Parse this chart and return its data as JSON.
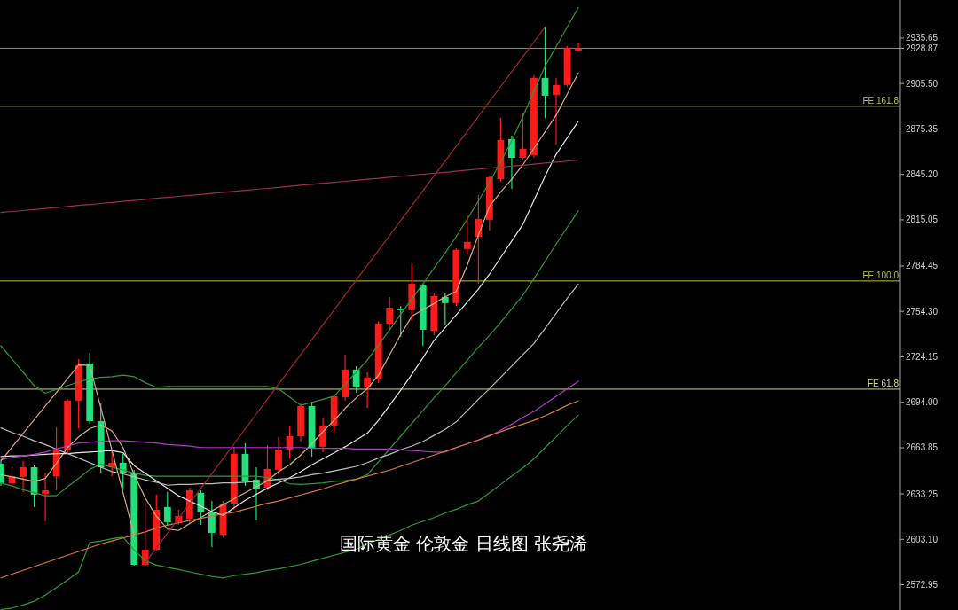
{
  "chart_data": {
    "type": "candlestick",
    "annotations": [
      "国际黄金 伦敦金 日线图 张尧浠"
    ],
    "categories": [
      null,
      null,
      null,
      null,
      null,
      null,
      null,
      null,
      null,
      null,
      null,
      null,
      null,
      null,
      null,
      null,
      null,
      null,
      null,
      null,
      null,
      null,
      null,
      null,
      null,
      null,
      null,
      null,
      null,
      null,
      null,
      null,
      null,
      null,
      null,
      null,
      null,
      null,
      null,
      null,
      null,
      null,
      null,
      null,
      null,
      null,
      null,
      null,
      null,
      null,
      null,
      null,
      null
    ],
    "ohlc": [
      [
        2653.3,
        2655.1,
        2638.6,
        2640.3
      ],
      [
        2640.3,
        2650.9,
        2636.2,
        2645.0
      ],
      [
        2644.5,
        2655.1,
        2634.4,
        2650.9
      ],
      [
        2650.9,
        2652.1,
        2624.5,
        2632.7
      ],
      [
        2633.3,
        2647.4,
        2615.1,
        2635.6
      ],
      [
        2645.0,
        2677.4,
        2635.6,
        2662.1
      ],
      [
        2662.1,
        2696.2,
        2659.8,
        2695.1
      ],
      [
        2695.1,
        2722.7,
        2676.8,
        2718.6
      ],
      [
        2719.8,
        2726.8,
        2679.8,
        2681.5
      ],
      [
        2681.5,
        2693.3,
        2647.4,
        2650.9
      ],
      [
        2650.9,
        2662.7,
        2645.0,
        2653.9
      ],
      [
        2653.9,
        2659.8,
        2635.6,
        2647.4
      ],
      [
        2647.4,
        2649.2,
        2585.6,
        2586.2
      ],
      [
        2586.2,
        2627.4,
        2585.6,
        2596.2
      ],
      [
        2596.2,
        2632.7,
        2595.1,
        2622.7
      ],
      [
        2624.5,
        2634.4,
        2612.1,
        2614.5
      ],
      [
        2614.5,
        2622.7,
        2612.7,
        2618.6
      ],
      [
        2616.8,
        2637.4,
        2613.9,
        2635.6
      ],
      [
        2633.9,
        2635.6,
        2612.7,
        2620.9
      ],
      [
        2621.5,
        2628.6,
        2598.0,
        2607.4
      ],
      [
        2606.2,
        2628.6,
        2604.5,
        2626.2
      ],
      [
        2626.8,
        2663.9,
        2622.7,
        2659.8
      ],
      [
        2659.8,
        2666.8,
        2638.6,
        2641.5
      ],
      [
        2642.7,
        2650.9,
        2615.7,
        2636.8
      ],
      [
        2637.4,
        2665.6,
        2635.6,
        2649.8
      ],
      [
        2649.2,
        2671.0,
        2646.2,
        2662.7
      ],
      [
        2662.7,
        2678.6,
        2656.8,
        2671.5
      ],
      [
        2671.5,
        2693.3,
        2668.0,
        2691.5
      ],
      [
        2691.5,
        2694.4,
        2658.0,
        2663.9
      ],
      [
        2664.5,
        2683.3,
        2660.9,
        2678.6
      ],
      [
        2678.6,
        2699.2,
        2674.5,
        2698.0
      ],
      [
        2697.4,
        2725.6,
        2695.1,
        2715.7
      ],
      [
        2715.7,
        2718.0,
        2700.4,
        2703.9
      ],
      [
        2703.9,
        2713.9,
        2690.3,
        2710.4
      ],
      [
        2709.2,
        2748.0,
        2706.8,
        2746.2
      ],
      [
        2746.2,
        2763.9,
        2742.1,
        2756.8
      ],
      [
        2756.2,
        2758.0,
        2737.4,
        2755.1
      ],
      [
        2755.1,
        2786.2,
        2748.0,
        2772.7
      ],
      [
        2771.5,
        2772.7,
        2731.5,
        2742.1
      ],
      [
        2741.5,
        2766.8,
        2738.6,
        2764.5
      ],
      [
        2763.9,
        2766.8,
        2745.1,
        2759.8
      ],
      [
        2759.8,
        2796.2,
        2758.0,
        2795.1
      ],
      [
        2795.7,
        2818.0,
        2792.1,
        2800.4
      ],
      [
        2803.9,
        2831.5,
        2772.7,
        2815.6
      ],
      [
        2815.1,
        2844.5,
        2808.0,
        2843.3
      ],
      [
        2842.1,
        2882.7,
        2840.4,
        2868.0
      ],
      [
        2868.6,
        2870.9,
        2835.6,
        2856.2
      ],
      [
        2856.2,
        2885.6,
        2855.1,
        2862.1
      ],
      [
        2858.0,
        2911.0,
        2856.2,
        2909.2
      ],
      [
        2909.2,
        2943.3,
        2882.7,
        2897.4
      ],
      [
        2898.0,
        2909.2,
        2865.1,
        2904.5
      ],
      [
        2904.5,
        2930.4,
        2903.2,
        2929.2
      ],
      [
        2927.4,
        2932.7,
        2926.8,
        2928.87
      ]
    ],
    "colors": [
      "#1fe07a",
      "#ff1a1a",
      "#ff1a1a",
      "#1fe07a",
      "#ff1a1a",
      "#ff1a1a",
      "#ff1a1a",
      "#ff1a1a",
      "#1fe07a",
      "#1fe07a",
      "#ff1a1a",
      "#1fe07a",
      "#1fe07a",
      "#ff1a1a",
      "#ff1a1a",
      "#1fe07a",
      "#ff1a1a",
      "#ff1a1a",
      "#1fe07a",
      "#1fe07a",
      "#ff1a1a",
      "#ff1a1a",
      "#1fe07a",
      "#1fe07a",
      "#ff1a1a",
      "#ff1a1a",
      "#ff1a1a",
      "#ff1a1a",
      "#1fe07a",
      "#ff1a1a",
      "#ff1a1a",
      "#ff1a1a",
      "#1fe07a",
      "#ff1a1a",
      "#ff1a1a",
      "#ff1a1a",
      "#1fe07a",
      "#ff1a1a",
      "#1fe07a",
      "#ff1a1a",
      "#1fe07a",
      "#ff1a1a",
      "#ff1a1a",
      "#ff1a1a",
      "#ff1a1a",
      "#ff1a1a",
      "#1fe07a",
      "#ff1a1a",
      "#ff1a1a",
      "#1fe07a",
      "#ff1a1a",
      "#ff1a1a",
      "#ff1a1a"
    ],
    "series": [
      {
        "type": "line",
        "color": "#2f9a2f",
        "values": [
          2731.5,
          2722.7,
          2714,
          2705,
          2700,
          2702.5,
          2705,
          2707.5,
          2709.5,
          2710.5,
          2711,
          2712,
          2711,
          2707,
          2704,
          2704.5,
          2704.5,
          2704.5,
          2704.5,
          2704.5,
          2704.5,
          2704.5,
          2704.5,
          2704.5,
          2704.5,
          2703,
          2697.5,
          2692,
          2694,
          2696,
          2698,
          2706,
          2714,
          2722,
          2732,
          2742,
          2752.5,
          2762.5,
          2772.5,
          2783,
          2793,
          2804,
          2815.5,
          2827.5,
          2840,
          2853.5,
          2867.5,
          2883.5,
          2900.5,
          2917,
          2930,
          2943,
          2956
        ]
      },
      {
        "type": "line",
        "color": "#2f9a2f",
        "values": [
          2640.5,
          2638.5,
          2636,
          2634,
          2632,
          2632,
          2638,
          2643.5,
          2649.5,
          2653,
          2651,
          2649,
          2647,
          2645.5,
          2645,
          2645,
          2645,
          2645,
          2645,
          2645,
          2645,
          2645,
          2645,
          2645,
          2644,
          2642.5,
          2640,
          2639.5,
          2640,
          2640.5,
          2641.5,
          2642,
          2643,
          2646,
          2654.5,
          2663,
          2671.5,
          2680,
          2688.5,
          2697,
          2705,
          2713.5,
          2722,
          2730.5,
          2738.5,
          2747,
          2756,
          2765,
          2776,
          2787.5,
          2799,
          2810,
          2821
        ]
      },
      {
        "type": "line",
        "color": "#2f9a2f",
        "values": [
          2556.5,
          2557.5,
          2559.5,
          2562,
          2566,
          2571,
          2576,
          2581.5,
          2601,
          2602,
          2603.5,
          2604.5,
          2596,
          2589,
          2586,
          2584.5,
          2583,
          2581.5,
          2580,
          2578.5,
          2577.5,
          2579,
          2580,
          2581,
          2582.5,
          2583.5,
          2585,
          2586.5,
          2588.5,
          2590.5,
          2592.5,
          2594.5,
          2596.5,
          2600,
          2603,
          2606,
          2609,
          2612.5,
          2615,
          2617.5,
          2620.5,
          2623,
          2626,
          2628.5,
          2634,
          2639.5,
          2645,
          2650.5,
          2656.5,
          2664,
          2671,
          2678.5,
          2685.5
        ]
      },
      {
        "type": "line",
        "color": "#d9b27c",
        "values": [
          2646,
          2644.5,
          2643,
          2641.5,
          2643.5,
          2653.5,
          2664,
          2671,
          2676.5,
          2679,
          2675,
          2664,
          2646,
          2630.5,
          2618.5,
          2610,
          2609,
          2613.5,
          2617.5,
          2622,
          2626,
          2630,
          2634,
          2638,
          2642,
          2648,
          2652.5,
          2659,
          2666.5,
          2674.5,
          2682,
          2690,
          2697,
          2703,
          2712,
          2725.5,
          2739,
          2751,
          2755.5,
          2759.5,
          2764,
          2767.5,
          2785,
          2805,
          2824,
          2833.5,
          2842,
          2851.5,
          2862.5,
          2873.5,
          2884.5,
          2898.5,
          2912.5
        ]
      },
      {
        "type": "line",
        "color": "#e6e6e6",
        "values": [
          2658,
          2658.5,
          2658.5,
          2659,
          2659.5,
          2660,
          2660,
          2660.5,
          2661,
          2661.5,
          2662,
          2660.5,
          2652,
          2647,
          2642,
          2637,
          2632,
          2628.5,
          2625,
          2621.5,
          2619,
          2624,
          2629,
          2633,
          2637,
          2640.5,
          2644,
          2648,
          2652.5,
          2656.5,
          2660.5,
          2664.5,
          2669,
          2673.5,
          2682,
          2692,
          2702,
          2712.5,
          2723.5,
          2735,
          2743.5,
          2752,
          2760.5,
          2769,
          2779,
          2790,
          2801,
          2812,
          2828,
          2844,
          2858.5,
          2869.5,
          2880.5
        ]
      },
      {
        "type": "line",
        "color": "#bdbdbd",
        "values": [
          2677,
          2674,
          2671.5,
          2668.5,
          2666,
          2663,
          2660,
          2657,
          2654,
          2651,
          2648,
          2646.5,
          2644.5,
          2642.5,
          2641,
          2639,
          2639.5,
          2639.5,
          2640,
          2640,
          2640.5,
          2640.5,
          2641,
          2641.5,
          2642,
          2643,
          2643.5,
          2644.5,
          2646,
          2647,
          2648.5,
          2650,
          2651.5,
          2654,
          2657,
          2659.5,
          2662.5,
          2665,
          2668,
          2672,
          2676,
          2681,
          2688.5,
          2696,
          2703,
          2710.5,
          2718,
          2725.5,
          2733,
          2743,
          2753,
          2763,
          2772.5
        ]
      },
      {
        "type": "line",
        "color": "#b03cc8",
        "values": [
          2656,
          2657.5,
          2658.5,
          2659.5,
          2661,
          2663,
          2665,
          2667,
          2667.5,
          2668,
          2668.5,
          2668.5,
          2668,
          2667.5,
          2667,
          2666,
          2665.5,
          2665,
          2664,
          2664,
          2664,
          2664,
          2664,
          2664,
          2664,
          2664,
          2664,
          2664,
          2663.5,
          2663.5,
          2663.5,
          2663.5,
          2663,
          2663,
          2663,
          2663,
          2662.5,
          2662,
          2661.5,
          2661,
          2661,
          2664,
          2666.5,
          2669,
          2671.5,
          2675.5,
          2679.5,
          2684,
          2688,
          2693,
          2698,
          2703,
          2708
        ]
      },
      {
        "type": "line",
        "color": "#d9793a",
        "values": [
          2577.5,
          2580,
          2582.5,
          2585,
          2587.5,
          2590,
          2592.5,
          2595,
          2597.5,
          2600,
          2602,
          2604,
          2606,
          2608,
          2610.5,
          2612.5,
          2614,
          2615.5,
          2617,
          2618.5,
          2620,
          2621,
          2623,
          2625,
          2627,
          2628.5,
          2630.5,
          2632.5,
          2634.5,
          2636.5,
          2639,
          2641,
          2643,
          2645,
          2647,
          2649,
          2651.5,
          2654,
          2656.5,
          2659,
          2661.5,
          2664,
          2666.5,
          2669,
          2672,
          2674.5,
          2677,
          2679.5,
          2682,
          2685,
          2688.5,
          2692,
          2695
        ]
      },
      {
        "type": "line",
        "color": "#a3262c",
        "values": [
          null,
          null,
          null,
          null,
          null,
          null,
          null,
          null,
          null,
          null,
          null,
          null,
          null,
          2587.5,
          2597.3,
          2607.2,
          2617.1,
          2627.0,
          2636.8,
          2646.7,
          2656.6,
          2666.5,
          2676.3,
          2686.2,
          2696.1,
          2706.0,
          2715.8,
          2725.7,
          2735.6,
          2745.5,
          2755.3,
          2765.2,
          2775.1,
          2785.0,
          2794.8,
          2804.7,
          2814.6,
          2824.4,
          2834.3,
          2844.2,
          2854.1,
          2863.9,
          2873.8,
          2883.7,
          2893.6,
          2903.4,
          2913.3,
          2923.2,
          2933.1,
          2943.0,
          null,
          null,
          null
        ]
      },
      {
        "type": "line",
        "color": "#9c2f4c",
        "values": [
          2819.9,
          2820.6,
          2821.2,
          2821.9,
          2822.6,
          2823.2,
          2823.9,
          2824.6,
          2825.2,
          2825.9,
          2826.6,
          2827.3,
          2827.9,
          2828.6,
          2829.3,
          2829.9,
          2830.6,
          2831.3,
          2831.9,
          2832.6,
          2833.3,
          2833.9,
          2834.6,
          2835.3,
          2835.9,
          2836.6,
          2837.3,
          2838.0,
          2838.6,
          2839.3,
          2840.0,
          2840.6,
          2841.3,
          2842.0,
          2842.6,
          2843.3,
          2844.0,
          2844.6,
          2845.3,
          2846.0,
          2846.6,
          2847.3,
          2848.0,
          2848.7,
          2849.3,
          2850.0,
          2850.7,
          2851.3,
          2852.0,
          2852.7,
          2853.3,
          2854.0,
          2854.7
        ]
      },
      {
        "type": "line",
        "color": "#e3a37e",
        "values": [
          2655.1,
          2664.2,
          2673.3,
          2682.4,
          2691.5,
          2700.6,
          2709.7,
          2718.8,
          2718.6,
          2690.4,
          2662.2,
          2634.1,
          2606.0,
          null,
          null,
          null,
          null,
          null,
          null,
          null,
          null,
          null,
          null,
          null,
          null,
          null,
          null,
          null,
          null,
          null,
          null,
          null,
          null,
          null,
          null,
          null,
          null,
          null,
          null,
          null,
          null,
          null,
          null,
          null,
          null,
          null,
          null,
          null,
          null,
          null,
          null,
          null,
          null
        ]
      }
    ],
    "ref_lines": [
      {
        "axis": "y",
        "value": 2890.4,
        "label": "FE 161.8",
        "color": "#bcbc4c"
      },
      {
        "axis": "y",
        "value": 2774.5,
        "label": "FE 100.0",
        "color": "#bcbc4c"
      },
      {
        "axis": "y",
        "value": 2702.7,
        "label": "FE 61.8",
        "color": "#d8d890"
      },
      {
        "axis": "y",
        "value": 2928.87,
        "color": "#8c8c8c"
      }
    ],
    "ylim": [
      2556.2,
      2960.9
    ],
    "yticks": [
      2572.95,
      {
        "value": 2603.1,
        "label": "2603.10"
      },
      2633.25,
      2663.85,
      {
        "value": 2694,
        "label": "2694.00"
      },
      2724.15,
      {
        "value": 2754.3,
        "label": "2754.30"
      },
      2784.45,
      2815.05,
      {
        "value": 2845.2,
        "label": "2845.20"
      },
      2875.35,
      {
        "value": 2905.5,
        "label": "2905.50"
      },
      2935.65,
      2928.87
    ],
    "tick_labels": "y"
  }
}
